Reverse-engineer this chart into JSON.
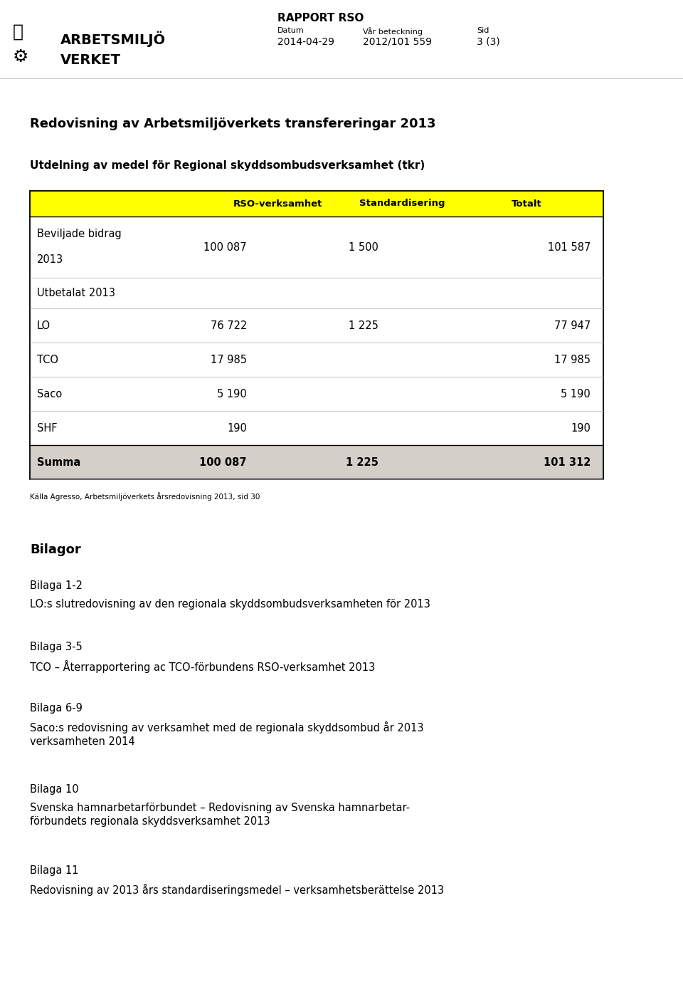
{
  "background_color": "#ffffff",
  "page_width": 9.6,
  "page_height": 14.07,
  "header": {
    "rapport_label": "RAPPORT RSO",
    "datum_label": "Datum",
    "datum_value": "2014-04-29",
    "var_beteckning_label": "Vår beteckning",
    "var_beteckning_value": "2012/101 559",
    "sid_label": "Sid",
    "sid_value": "3 (3)"
  },
  "main_title": "Redovisning av Arbetsmiljöverkets transfereringar 2013",
  "table_title": "Utdelning av medel för Regional skyddsombudsverksamhet (tkr)",
  "table_header_bg": "#ffff00",
  "table_summa_bg": "#d4cfc8",
  "col_headers": [
    "RSO-verksamhet",
    "Standardisering",
    "Totalt"
  ],
  "rows": [
    {
      "label": "Beviljade bidrag\n2013",
      "rso": "100 087",
      "std": "1 500",
      "totalt": "101 587",
      "bold": false,
      "bg": "#ffffff",
      "rh_mult": 1.8
    },
    {
      "label": "Utbetalat 2013",
      "rso": "",
      "std": "",
      "totalt": "",
      "bold": false,
      "bg": "#ffffff",
      "rh_mult": 0.9
    },
    {
      "label": "LO",
      "rso": "76 722",
      "std": "1 225",
      "totalt": "77 947",
      "bold": false,
      "bg": "#ffffff",
      "rh_mult": 1.0
    },
    {
      "label": "TCO",
      "rso": "17 985",
      "std": "",
      "totalt": "17 985",
      "bold": false,
      "bg": "#ffffff",
      "rh_mult": 1.0
    },
    {
      "label": "Saco",
      "rso": "5 190",
      "std": "",
      "totalt": "5 190",
      "bold": false,
      "bg": "#ffffff",
      "rh_mult": 1.0
    },
    {
      "label": "SHF",
      "rso": "190",
      "std": "",
      "totalt": "190",
      "bold": false,
      "bg": "#ffffff",
      "rh_mult": 1.0
    },
    {
      "label": "Summa",
      "rso": "100 087",
      "std": "1 225",
      "totalt": "101 312",
      "bold": true,
      "bg": "#d4cfc8",
      "rh_mult": 1.0
    }
  ],
  "source_note": "Källa Agresso, Arbetsmiljöverkets årsredovisning 2013, sid 30",
  "bilagor_title": "Bilagor",
  "bilagor": [
    {
      "heading": "Bilaga 1-2",
      "text": "LO:s slutredovisning av den regionala skyddsombudsverksamheten för 2013"
    },
    {
      "heading": "Bilaga 3-5",
      "text": "TCO – Återrapportering ac TCO-förbundens RSO-verksamhet 2013"
    },
    {
      "heading": "Bilaga 6-9",
      "text": "Saco:s redovisning av verksamhet med de regionala skyddsombud år 2013\nverksamheten 2014"
    },
    {
      "heading": "Bilaga 10",
      "text": "Svenska hamnarbetarförbundet – Redovisning av Svenska hamnarbetar-\nförbundets regionala skyddsverksamhet 2013"
    },
    {
      "heading": "Bilaga 11",
      "text": "Redovisning av 2013 års standardiseringsmedel – verksamhetsberättelse 2013"
    }
  ]
}
